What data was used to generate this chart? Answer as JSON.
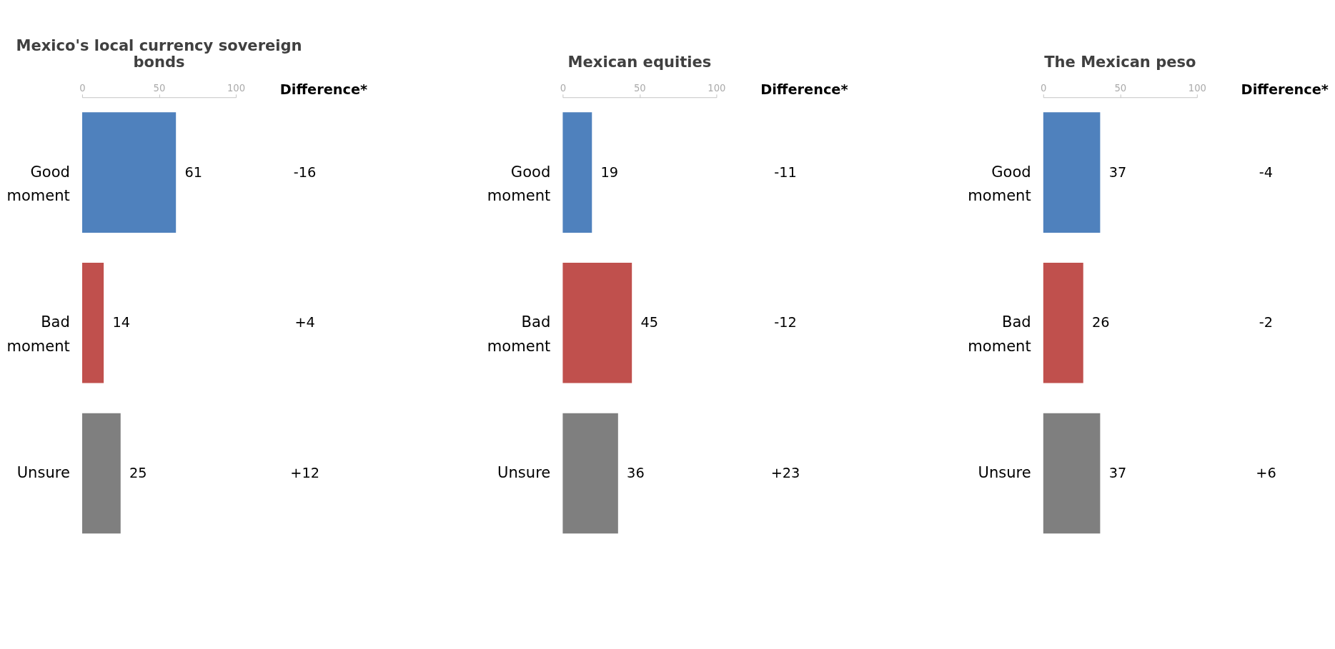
{
  "chart_data": [
    {
      "type": "bar",
      "orientation": "horizontal",
      "title": "Mexico's local currency sovereign bonds",
      "categories": [
        "Good moment",
        "Bad moment",
        "Unsure"
      ],
      "values": [
        61,
        14,
        25
      ],
      "colors": [
        "#4f81bd",
        "#c0504d",
        "#7f7f7f"
      ],
      "xlim": [
        0,
        100
      ],
      "xticks": [
        0,
        50,
        100
      ],
      "data_labels": true,
      "grid": false,
      "legend": false,
      "annotations": [
        "Difference*",
        "-16",
        "+4",
        "+12"
      ]
    },
    {
      "type": "bar",
      "orientation": "horizontal",
      "title": "Mexican equities",
      "categories": [
        "Good moment",
        "Bad moment",
        "Unsure"
      ],
      "values": [
        19,
        45,
        36
      ],
      "colors": [
        "#4f81bd",
        "#c0504d",
        "#7f7f7f"
      ],
      "xlim": [
        0,
        100
      ],
      "xticks": [
        0,
        50,
        100
      ],
      "data_labels": true,
      "grid": false,
      "legend": false,
      "annotations": [
        "Difference*",
        "-11",
        "-12",
        "+23"
      ]
    },
    {
      "type": "bar",
      "orientation": "horizontal",
      "title": "The Mexican peso",
      "categories": [
        "Good moment",
        "Bad moment",
        "Unsure"
      ],
      "values": [
        37,
        26,
        37
      ],
      "colors": [
        "#4f81bd",
        "#c0504d",
        "#7f7f7f"
      ],
      "xlim": [
        0,
        100
      ],
      "xticks": [
        0,
        50,
        100
      ],
      "data_labels": true,
      "grid": false,
      "legend": false,
      "annotations": [
        "Difference*",
        "-4",
        "-2",
        "+6"
      ]
    }
  ]
}
